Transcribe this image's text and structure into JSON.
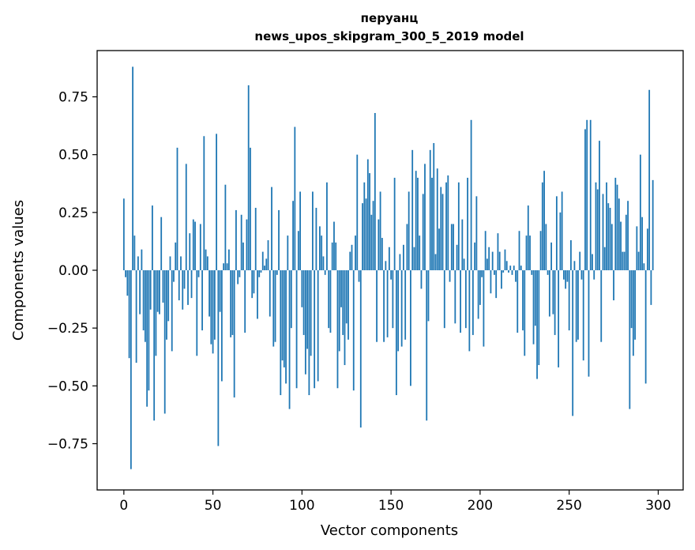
{
  "chart_data": {
    "type": "bar",
    "title_line1": "перуанц",
    "title_line2": "news_upos_skipgram_300_5_2019 model",
    "xlabel": "Vector components",
    "ylabel": "Components values",
    "xlim": [
      -15,
      314
    ],
    "ylim": [
      -0.95,
      0.95
    ],
    "xticks": [
      0,
      50,
      100,
      150,
      200,
      250,
      300
    ],
    "yticks": [
      -0.75,
      -0.5,
      -0.25,
      0.0,
      0.25,
      0.5,
      0.75
    ],
    "ytick_labels": [
      "−0.75",
      "−0.50",
      "−0.25",
      "0.00",
      "0.25",
      "0.50",
      "0.75"
    ],
    "bar_color": "#1f77b4",
    "values": [
      0.31,
      -0.03,
      -0.11,
      -0.38,
      -0.86,
      0.88,
      0.15,
      -0.4,
      0.06,
      -0.19,
      0.09,
      -0.26,
      -0.31,
      -0.59,
      -0.52,
      -0.17,
      0.28,
      -0.65,
      -0.37,
      -0.18,
      -0.19,
      0.23,
      -0.14,
      -0.62,
      -0.3,
      -0.22,
      0.06,
      -0.35,
      -0.05,
      0.12,
      0.53,
      -0.13,
      0.06,
      -0.17,
      -0.08,
      0.46,
      -0.15,
      0.16,
      -0.12,
      0.22,
      0.21,
      -0.37,
      -0.03,
      0.2,
      -0.26,
      0.58,
      0.09,
      0.06,
      -0.2,
      -0.32,
      -0.36,
      -0.3,
      0.59,
      -0.76,
      -0.18,
      -0.48,
      0.03,
      0.37,
      0.03,
      0.09,
      -0.29,
      -0.28,
      -0.55,
      0.26,
      -0.06,
      -0.03,
      0.24,
      0.12,
      -0.27,
      0.22,
      0.8,
      0.53,
      -0.12,
      -0.1,
      0.27,
      -0.21,
      -0.03,
      -0.01,
      0.08,
      0.02,
      0.05,
      0.13,
      -0.2,
      0.36,
      -0.33,
      -0.31,
      -0.02,
      0.26,
      -0.54,
      -0.39,
      -0.42,
      -0.49,
      0.15,
      -0.6,
      -0.25,
      0.3,
      0.62,
      -0.51,
      0.17,
      0.34,
      -0.16,
      -0.28,
      -0.45,
      -0.34,
      -0.54,
      -0.37,
      0.34,
      -0.51,
      0.27,
      -0.48,
      0.19,
      0.15,
      0.06,
      -0.02,
      0.38,
      -0.25,
      -0.27,
      0.12,
      0.21,
      0.12,
      -0.51,
      -0.35,
      -0.16,
      -0.28,
      -0.41,
      -0.23,
      -0.3,
      0.08,
      0.11,
      -0.52,
      0.15,
      0.5,
      -0.05,
      -0.68,
      0.29,
      0.38,
      0.31,
      0.48,
      0.42,
      0.24,
      0.3,
      0.68,
      -0.31,
      0.22,
      0.34,
      0.14,
      -0.31,
      0.04,
      -0.29,
      0.1,
      -0.04,
      -0.25,
      0.4,
      -0.54,
      -0.35,
      0.07,
      -0.33,
      0.11,
      -0.3,
      0.2,
      0.34,
      -0.5,
      0.52,
      0.1,
      0.43,
      0.4,
      0.15,
      -0.08,
      0.33,
      0.46,
      -0.65,
      -0.22,
      0.52,
      0.4,
      0.55,
      0.07,
      0.44,
      0.18,
      0.36,
      0.33,
      -0.25,
      0.38,
      0.41,
      -0.05,
      0.2,
      0.2,
      -0.23,
      0.11,
      0.38,
      -0.27,
      0.22,
      0.05,
      -0.25,
      0.4,
      -0.35,
      0.65,
      -0.28,
      0.12,
      0.32,
      -0.21,
      -0.15,
      -0.03,
      -0.33,
      0.17,
      0.05,
      0.1,
      -0.1,
      0.08,
      -0.02,
      -0.12,
      0.16,
      0.08,
      -0.08,
      -0.01,
      0.09,
      0.04,
      -0.01,
      0.02,
      -0.02,
      0.02,
      -0.05,
      -0.27,
      0.17,
      0.02,
      -0.26,
      -0.37,
      0.15,
      0.28,
      0.15,
      -0.02,
      -0.32,
      -0.24,
      -0.47,
      -0.41,
      0.17,
      0.38,
      0.43,
      0.2,
      -0.02,
      -0.2,
      0.12,
      -0.19,
      -0.28,
      0.32,
      -0.42,
      0.25,
      0.34,
      -0.04,
      -0.08,
      -0.05,
      -0.26,
      0.13,
      -0.63,
      0.04,
      -0.31,
      -0.3,
      0.08,
      -0.04,
      -0.39,
      0.61,
      0.65,
      -0.46,
      0.65,
      0.07,
      -0.04,
      0.38,
      0.35,
      0.56,
      -0.31,
      0.33,
      0.1,
      0.38,
      0.29,
      0.27,
      0.2,
      -0.13,
      0.4,
      0.37,
      0.31,
      0.21,
      0.08,
      0.08,
      0.24,
      0.3,
      -0.6,
      -0.25,
      -0.37,
      -0.3,
      0.19,
      0.08,
      0.5,
      0.23,
      0.03,
      -0.49,
      0.18,
      0.78,
      -0.15,
      0.39
    ]
  }
}
